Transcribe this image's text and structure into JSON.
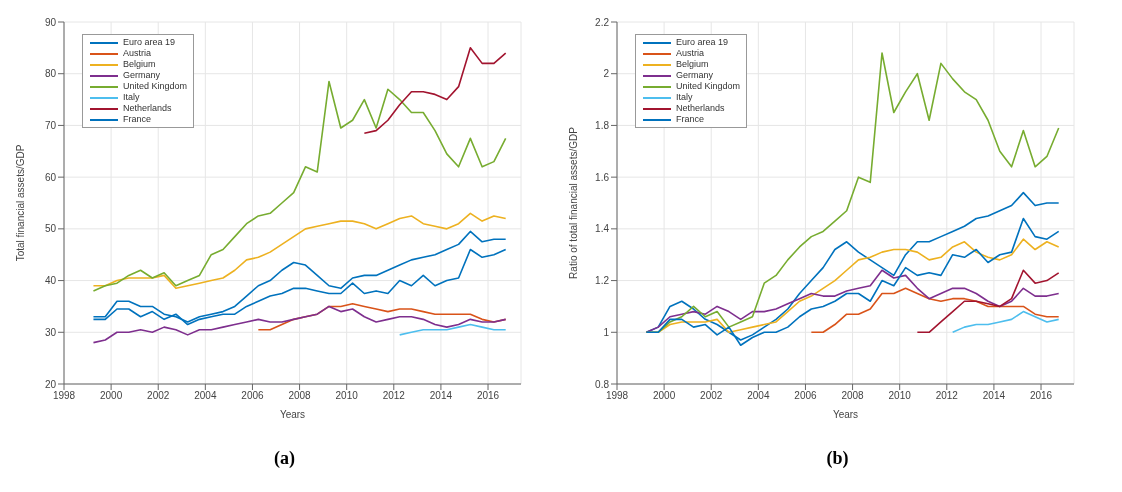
{
  "chart_data": [
    {
      "type": "line",
      "xlabel": "Years",
      "ylabel": "Total financial assets/GDP",
      "annotations": [
        "(a)"
      ],
      "xlim": [
        1998,
        2017.4
      ],
      "xticks": [
        1998,
        2000,
        2002,
        2004,
        2006,
        2008,
        2010,
        2012,
        2014,
        2016
      ],
      "ylim": [
        20,
        90
      ],
      "yticks": [
        20,
        30,
        40,
        50,
        60,
        70,
        80,
        90
      ],
      "grid": true,
      "legend": "top left",
      "x": [
        1999.25,
        1999.75,
        2000.25,
        2000.75,
        2001.25,
        2001.75,
        2002.25,
        2002.75,
        2003.25,
        2003.75,
        2004.25,
        2004.75,
        2005.25,
        2005.75,
        2006.25,
        2006.75,
        2007.25,
        2007.75,
        2008.25,
        2008.75,
        2009.25,
        2009.75,
        2010.25,
        2010.75,
        2011.25,
        2011.75,
        2012.25,
        2012.75,
        2013.25,
        2013.75,
        2014.25,
        2014.75,
        2015.25,
        2015.75,
        2016.25,
        2016.75
      ],
      "series": [
        {
          "name": "Euro area 19",
          "color": "#0072bd",
          "values": [
            33,
            33,
            36,
            36,
            35,
            35,
            33.5,
            33,
            32,
            33,
            33.5,
            34,
            35,
            37,
            39,
            40,
            42,
            43.5,
            43,
            41,
            39,
            38.5,
            40.5,
            41,
            41,
            42,
            43,
            44,
            44.5,
            45,
            46,
            47,
            49.5,
            47.5,
            48,
            48
          ]
        },
        {
          "name": "Austria",
          "color": "#d95319",
          "values": [
            null,
            null,
            null,
            null,
            null,
            null,
            null,
            null,
            null,
            null,
            null,
            null,
            null,
            null,
            30.5,
            30.5,
            31.5,
            32.5,
            33,
            33.5,
            35,
            35,
            35.5,
            35,
            34.5,
            34,
            34.5,
            34.5,
            34,
            33.5,
            33.5,
            33.5,
            33.5,
            32.5,
            32,
            32.5
          ]
        },
        {
          "name": "Belgium",
          "color": "#edb120",
          "values": [
            39,
            39,
            40,
            40.5,
            40.5,
            40.5,
            41,
            38.5,
            39,
            39.5,
            40,
            40.5,
            42,
            44,
            44.5,
            45.5,
            47,
            48.5,
            50,
            50.5,
            51,
            51.5,
            51.5,
            51,
            50,
            51,
            52,
            52.5,
            51,
            50.5,
            50,
            51,
            53,
            51.5,
            52.5,
            52
          ]
        },
        {
          "name": "Germany",
          "color": "#7e2f8e",
          "values": [
            28,
            28.5,
            30,
            30,
            30.5,
            30,
            31,
            30.5,
            29.5,
            30.5,
            30.5,
            31,
            31.5,
            32,
            32.5,
            32,
            32,
            32.5,
            33,
            33.5,
            35,
            34,
            34.5,
            33,
            32,
            32.5,
            33,
            33,
            32.5,
            31.5,
            31,
            31.5,
            32.5,
            32,
            32,
            32.5
          ]
        },
        {
          "name": "United Kingdom",
          "color": "#77ac30",
          "values": [
            38,
            39,
            39.5,
            41,
            42,
            40.5,
            41.5,
            39,
            40,
            41,
            45,
            46,
            48.5,
            51,
            52.5,
            53,
            55,
            57,
            62,
            61,
            78.5,
            69.5,
            71,
            75,
            69.5,
            77,
            75,
            72.5,
            72.5,
            69,
            64.5,
            62,
            67.5,
            62,
            63,
            67.5
          ]
        },
        {
          "name": "Italy",
          "color": "#4dbeee",
          "values": [
            null,
            null,
            null,
            null,
            null,
            null,
            null,
            null,
            null,
            null,
            null,
            null,
            null,
            null,
            null,
            null,
            null,
            null,
            null,
            null,
            null,
            null,
            null,
            null,
            null,
            null,
            29.5,
            30,
            30.5,
            30.5,
            30.5,
            31,
            31.5,
            31,
            30.5,
            30.5
          ]
        },
        {
          "name": "Netherlands",
          "color": "#a2142f",
          "values": [
            null,
            null,
            null,
            null,
            null,
            null,
            null,
            null,
            null,
            null,
            null,
            null,
            null,
            null,
            null,
            null,
            null,
            null,
            null,
            null,
            null,
            null,
            null,
            68.5,
            69,
            71,
            74,
            76.5,
            76.5,
            76,
            75,
            77.5,
            85,
            82,
            82,
            84
          ]
        },
        {
          "name": "France",
          "color": "#0072bd",
          "values": [
            32.5,
            32.5,
            34.5,
            34.5,
            33,
            34,
            32.5,
            33.5,
            31.5,
            32.5,
            33,
            33.5,
            33.5,
            35,
            36,
            37,
            37.5,
            38.5,
            38.5,
            38,
            37.5,
            37.5,
            39.5,
            37.5,
            38,
            37.5,
            40,
            39,
            41,
            39,
            40,
            40.5,
            46,
            44.5,
            45,
            46
          ]
        }
      ]
    },
    {
      "type": "line",
      "xlabel": "Years",
      "ylabel": "Ratio of total financial assets/GDP",
      "annotations": [
        "(b)"
      ],
      "xlim": [
        1998,
        2017.4
      ],
      "xticks": [
        1998,
        2000,
        2002,
        2004,
        2006,
        2008,
        2010,
        2012,
        2014,
        2016
      ],
      "ylim": [
        0.8,
        2.2
      ],
      "yticks": [
        0.8,
        1,
        1.2,
        1.4,
        1.6,
        1.8,
        2,
        2.2
      ],
      "grid": true,
      "legend": "top left",
      "x": [
        1999.25,
        1999.75,
        2000.25,
        2000.75,
        2001.25,
        2001.75,
        2002.25,
        2002.75,
        2003.25,
        2003.75,
        2004.25,
        2004.75,
        2005.25,
        2005.75,
        2006.25,
        2006.75,
        2007.25,
        2007.75,
        2008.25,
        2008.75,
        2009.25,
        2009.75,
        2010.25,
        2010.75,
        2011.25,
        2011.75,
        2012.25,
        2012.75,
        2013.25,
        2013.75,
        2014.25,
        2014.75,
        2015.25,
        2015.75,
        2016.25,
        2016.75
      ],
      "series": [
        {
          "name": "Euro area 19",
          "color": "#0072bd",
          "values": [
            1.0,
            1.02,
            1.1,
            1.12,
            1.09,
            1.05,
            1.03,
            1.0,
            0.97,
            0.99,
            1.02,
            1.05,
            1.09,
            1.15,
            1.2,
            1.25,
            1.32,
            1.35,
            1.31,
            1.28,
            1.25,
            1.22,
            1.3,
            1.35,
            1.35,
            1.37,
            1.39,
            1.41,
            1.44,
            1.45,
            1.47,
            1.49,
            1.54,
            1.49,
            1.5,
            1.5
          ]
        },
        {
          "name": "Austria",
          "color": "#d95319",
          "values": [
            null,
            null,
            null,
            null,
            null,
            null,
            null,
            null,
            null,
            null,
            null,
            null,
            null,
            null,
            1.0,
            1.0,
            1.03,
            1.07,
            1.07,
            1.09,
            1.15,
            1.15,
            1.17,
            1.15,
            1.13,
            1.12,
            1.13,
            1.13,
            1.12,
            1.1,
            1.1,
            1.1,
            1.1,
            1.07,
            1.06,
            1.06
          ]
        },
        {
          "name": "Belgium",
          "color": "#edb120",
          "values": [
            1.0,
            1.0,
            1.03,
            1.04,
            1.04,
            1.04,
            1.05,
            1.0,
            1.01,
            1.02,
            1.03,
            1.04,
            1.08,
            1.12,
            1.14,
            1.17,
            1.2,
            1.24,
            1.28,
            1.29,
            1.31,
            1.32,
            1.32,
            1.31,
            1.28,
            1.29,
            1.33,
            1.35,
            1.31,
            1.29,
            1.28,
            1.3,
            1.36,
            1.32,
            1.35,
            1.33
          ]
        },
        {
          "name": "Germany",
          "color": "#7e2f8e",
          "values": [
            1.0,
            1.02,
            1.06,
            1.07,
            1.08,
            1.07,
            1.1,
            1.08,
            1.05,
            1.08,
            1.08,
            1.09,
            1.11,
            1.13,
            1.15,
            1.14,
            1.14,
            1.16,
            1.17,
            1.18,
            1.24,
            1.21,
            1.22,
            1.17,
            1.13,
            1.15,
            1.17,
            1.17,
            1.15,
            1.12,
            1.1,
            1.12,
            1.17,
            1.14,
            1.14,
            1.15
          ]
        },
        {
          "name": "United Kingdom",
          "color": "#77ac30",
          "values": [
            1.0,
            1.0,
            1.04,
            1.06,
            1.1,
            1.06,
            1.08,
            1.02,
            1.04,
            1.06,
            1.19,
            1.22,
            1.28,
            1.33,
            1.37,
            1.39,
            1.43,
            1.47,
            1.6,
            1.58,
            2.08,
            1.85,
            1.93,
            2.0,
            1.82,
            2.04,
            1.98,
            1.93,
            1.9,
            1.82,
            1.7,
            1.64,
            1.78,
            1.64,
            1.68,
            1.79
          ]
        },
        {
          "name": "Italy",
          "color": "#4dbeee",
          "values": [
            null,
            null,
            null,
            null,
            null,
            null,
            null,
            null,
            null,
            null,
            null,
            null,
            null,
            null,
            null,
            null,
            null,
            null,
            null,
            null,
            null,
            null,
            null,
            null,
            null,
            null,
            1.0,
            1.02,
            1.03,
            1.03,
            1.04,
            1.05,
            1.08,
            1.06,
            1.04,
            1.05
          ]
        },
        {
          "name": "Netherlands",
          "color": "#a2142f",
          "values": [
            null,
            null,
            null,
            null,
            null,
            null,
            null,
            null,
            null,
            null,
            null,
            null,
            null,
            null,
            null,
            null,
            null,
            null,
            null,
            null,
            null,
            null,
            null,
            1.0,
            1.0,
            1.04,
            1.08,
            1.12,
            1.12,
            1.11,
            1.1,
            1.13,
            1.24,
            1.19,
            1.2,
            1.23
          ]
        },
        {
          "name": "France",
          "color": "#0072bd",
          "values": [
            1.0,
            1.0,
            1.05,
            1.05,
            1.02,
            1.03,
            0.99,
            1.02,
            0.95,
            0.98,
            1.0,
            1.0,
            1.02,
            1.06,
            1.09,
            1.1,
            1.12,
            1.15,
            1.15,
            1.12,
            1.2,
            1.18,
            1.25,
            1.22,
            1.23,
            1.22,
            1.3,
            1.29,
            1.32,
            1.27,
            1.3,
            1.31,
            1.44,
            1.37,
            1.36,
            1.39
          ]
        }
      ]
    }
  ]
}
